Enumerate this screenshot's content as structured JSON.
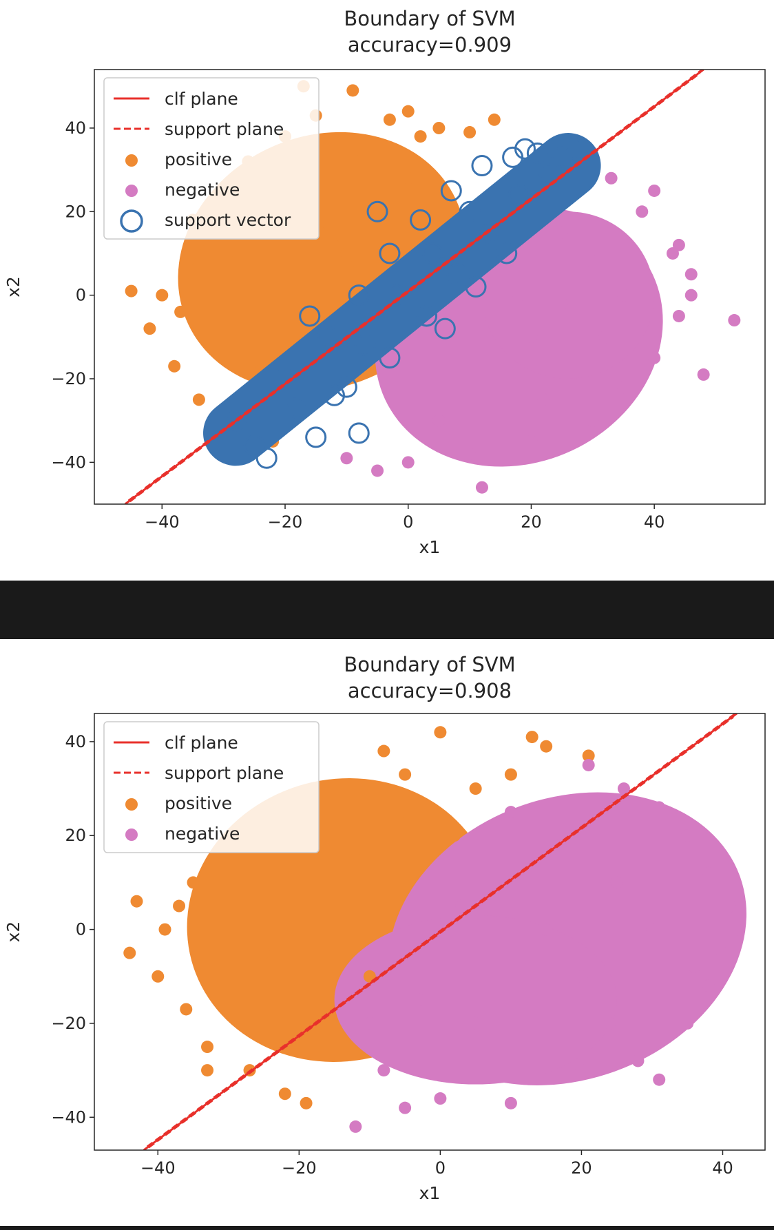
{
  "chart_data": [
    {
      "type": "scatter",
      "title": "Boundary of SVM",
      "subtitle": "accuracy=0.909",
      "xlabel": "x1",
      "ylabel": "x2",
      "xlim": [
        -51,
        58
      ],
      "ylim": [
        -50,
        54
      ],
      "xticks": [
        -40,
        -20,
        0,
        20,
        40
      ],
      "yticks": [
        -40,
        -20,
        0,
        20,
        40
      ],
      "grid": false,
      "legend_position": "top-left",
      "legend": [
        "clf plane",
        "support plane",
        "positive",
        "negative",
        "support vector"
      ],
      "colors": {
        "positive": "#ef8a32",
        "negative": "#d47bc2",
        "support_vector": "#3a73b0",
        "plane": "#e8302b"
      },
      "series": [
        {
          "name": "clf plane",
          "kind": "line",
          "x": [
            -46,
            48
          ],
          "y": [
            -50,
            54
          ]
        },
        {
          "name": "support plane",
          "kind": "dashed-line",
          "x": [
            -46,
            48
          ],
          "y": [
            -50,
            54
          ]
        },
        {
          "name": "positive",
          "kind": "points",
          "points": [
            [
              -12,
              30
            ],
            [
              -8,
              35
            ],
            [
              -3,
              42
            ],
            [
              2,
              38
            ],
            [
              -17,
              22
            ],
            [
              -23,
              15
            ],
            [
              -28,
              8
            ],
            [
              -33,
              2
            ],
            [
              -37,
              -4
            ],
            [
              -40,
              0
            ],
            [
              -35,
              18
            ],
            [
              -30,
              25
            ],
            [
              -26,
              32
            ],
            [
              -20,
              38
            ],
            [
              -15,
              43
            ],
            [
              -9,
              49
            ],
            [
              -17,
              50
            ],
            [
              0,
              44
            ],
            [
              5,
              40
            ],
            [
              10,
              39
            ],
            [
              14,
              42
            ],
            [
              -45,
              1
            ],
            [
              -42,
              -8
            ],
            [
              -38,
              -17
            ],
            [
              -34,
              -25
            ],
            [
              -27,
              -31
            ],
            [
              -22,
              -35
            ],
            [
              -18,
              -20
            ],
            [
              -15,
              -6
            ],
            [
              -10,
              10
            ],
            [
              -5,
              20
            ],
            [
              0,
              28
            ],
            [
              -25,
              0
            ],
            [
              -20,
              5
            ],
            [
              -30,
              -10
            ],
            [
              -24,
              -18
            ]
          ]
        },
        {
          "name": "negative",
          "kind": "points",
          "points": [
            [
              10,
              -38
            ],
            [
              20,
              -35
            ],
            [
              30,
              -30
            ],
            [
              35,
              -22
            ],
            [
              40,
              -15
            ],
            [
              44,
              -5
            ],
            [
              46,
              5
            ],
            [
              44,
              12
            ],
            [
              38,
              20
            ],
            [
              33,
              28
            ],
            [
              27,
              32
            ],
            [
              15,
              -20
            ],
            [
              20,
              -10
            ],
            [
              25,
              -2
            ],
            [
              30,
              8
            ],
            [
              5,
              -30
            ],
            [
              0,
              -40
            ],
            [
              12,
              -46
            ],
            [
              -5,
              -42
            ],
            [
              -10,
              -39
            ],
            [
              53,
              -6
            ],
            [
              48,
              -19
            ],
            [
              46,
              0
            ],
            [
              43,
              10
            ],
            [
              40,
              25
            ],
            [
              32,
              -10
            ],
            [
              22,
              -25
            ],
            [
              18,
              0
            ],
            [
              35,
              0
            ],
            [
              25,
              15
            ]
          ]
        },
        {
          "name": "support vector",
          "kind": "open-circles",
          "points": [
            [
              -23,
              -39
            ],
            [
              -25,
              -36
            ],
            [
              -15,
              -34
            ],
            [
              -8,
              -33
            ],
            [
              -28,
              -30
            ],
            [
              -18,
              -27
            ],
            [
              -10,
              -22
            ],
            [
              -3,
              -15
            ],
            [
              3,
              -5
            ],
            [
              8,
              5
            ],
            [
              13,
              15
            ],
            [
              18,
              24
            ],
            [
              21,
              34
            ],
            [
              27,
              35
            ],
            [
              17,
              33
            ],
            [
              12,
              31
            ],
            [
              7,
              25
            ],
            [
              2,
              18
            ],
            [
              -3,
              10
            ],
            [
              -8,
              0
            ],
            [
              -13,
              -10
            ],
            [
              -20,
              -20
            ],
            [
              23,
              29
            ],
            [
              25,
              33
            ],
            [
              19,
              35
            ],
            [
              10,
              20
            ],
            [
              4,
              10
            ],
            [
              -2,
              0
            ],
            [
              -7,
              -12
            ],
            [
              -12,
              -24
            ],
            [
              6,
              -8
            ],
            [
              11,
              2
            ],
            [
              -16,
              -5
            ],
            [
              16,
              10
            ],
            [
              -5,
              20
            ]
          ]
        }
      ]
    },
    {
      "type": "scatter",
      "title": "Boundary of SVM",
      "subtitle": "accuracy=0.908",
      "xlabel": "x1",
      "ylabel": "x2",
      "xlim": [
        -49,
        46
      ],
      "ylim": [
        -47,
        46
      ],
      "xticks": [
        -40,
        -20,
        0,
        20,
        40
      ],
      "yticks": [
        -40,
        -20,
        0,
        20,
        40
      ],
      "grid": false,
      "legend_position": "top-left",
      "legend": [
        "clf plane",
        "support plane",
        "positive",
        "negative"
      ],
      "colors": {
        "positive": "#ef8a32",
        "negative": "#d47bc2",
        "plane": "#e8302b"
      },
      "series": [
        {
          "name": "clf plane",
          "kind": "line",
          "x": [
            -42,
            42
          ],
          "y": [
            -47,
            46
          ]
        },
        {
          "name": "support plane",
          "kind": "dashed-line",
          "x": [
            -42,
            42
          ],
          "y": [
            -47,
            46
          ]
        },
        {
          "name": "positive",
          "kind": "points",
          "points": [
            [
              0,
              42
            ],
            [
              -8,
              38
            ],
            [
              13,
              41
            ],
            [
              21,
              37
            ],
            [
              15,
              39
            ],
            [
              -5,
              33
            ],
            [
              -15,
              30
            ],
            [
              -23,
              25
            ],
            [
              -30,
              18
            ],
            [
              -35,
              10
            ],
            [
              -37,
              5
            ],
            [
              -39,
              0
            ],
            [
              -43,
              6
            ],
            [
              -44,
              -5
            ],
            [
              -40,
              -10
            ],
            [
              -36,
              -17
            ],
            [
              -33,
              -25
            ],
            [
              -27,
              -30
            ],
            [
              -22,
              -35
            ],
            [
              -19,
              -37
            ],
            [
              -33,
              -30
            ],
            [
              -20,
              10
            ],
            [
              -15,
              0
            ],
            [
              -10,
              -10
            ],
            [
              -25,
              -5
            ],
            [
              -5,
              25
            ],
            [
              5,
              30
            ],
            [
              10,
              33
            ],
            [
              -30,
              0
            ],
            [
              -22,
              -20
            ],
            [
              -12,
              15
            ],
            [
              2,
              20
            ]
          ]
        },
        {
          "name": "negative",
          "kind": "points",
          "points": [
            [
              -12,
              -42
            ],
            [
              -5,
              -38
            ],
            [
              0,
              -36
            ],
            [
              10,
              -37
            ],
            [
              20,
              -30
            ],
            [
              28,
              -28
            ],
            [
              31,
              -32
            ],
            [
              35,
              -20
            ],
            [
              38,
              -12
            ],
            [
              40,
              -5
            ],
            [
              42,
              0
            ],
            [
              41,
              5
            ],
            [
              38,
              12
            ],
            [
              35,
              20
            ],
            [
              31,
              26
            ],
            [
              26,
              30
            ],
            [
              21,
              35
            ],
            [
              10,
              25
            ],
            [
              15,
              0
            ],
            [
              20,
              -10
            ],
            [
              5,
              -20
            ],
            [
              -3,
              -15
            ],
            [
              25,
              10
            ],
            [
              30,
              0
            ],
            [
              -8,
              -30
            ],
            [
              36,
              -8
            ],
            [
              17,
              18
            ],
            [
              3,
              5
            ],
            [
              -10,
              -20
            ],
            [
              24,
              -20
            ]
          ]
        }
      ]
    }
  ]
}
